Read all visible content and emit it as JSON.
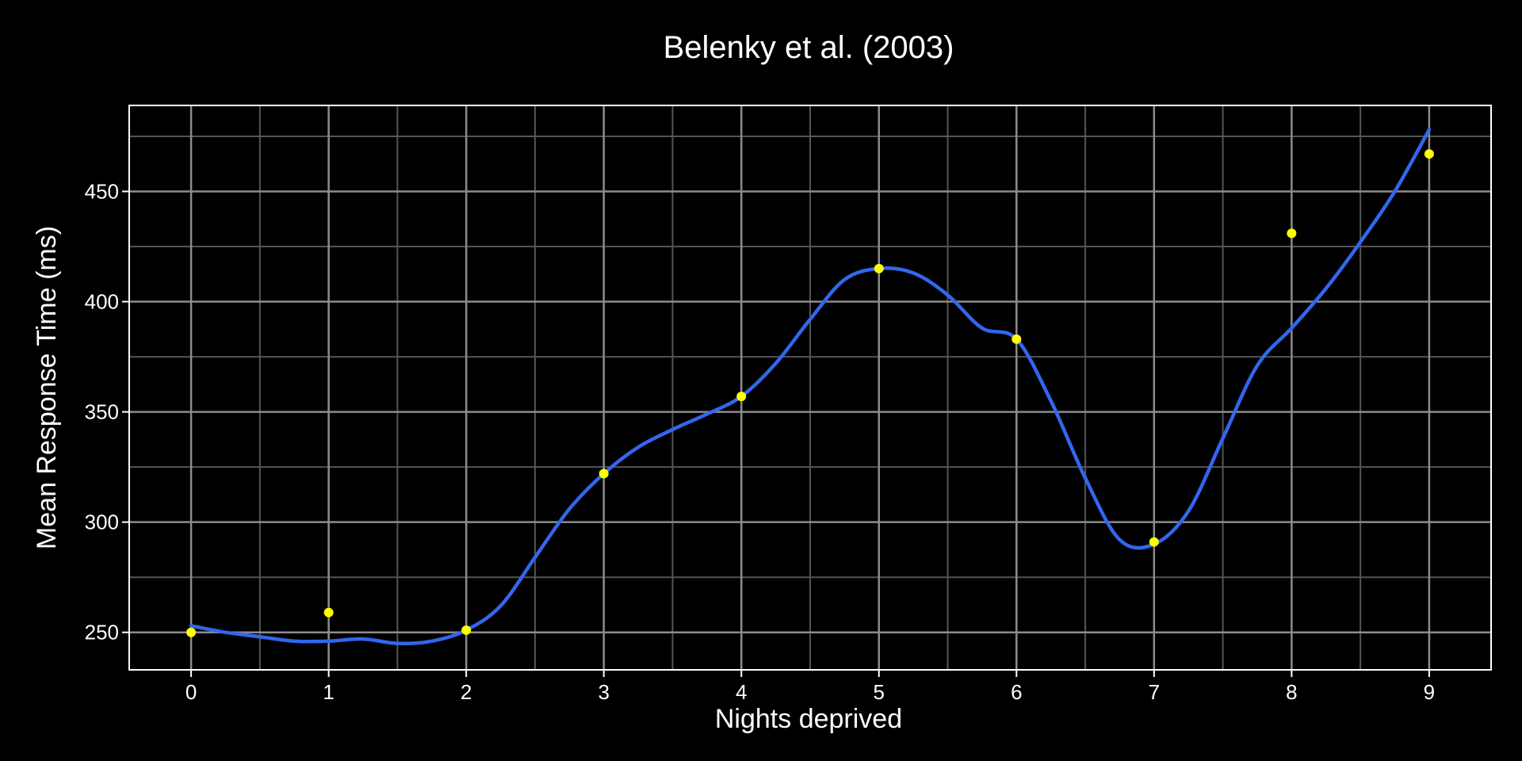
{
  "chart_data": {
    "type": "scatter",
    "title": "Belenky et al. (2003)",
    "xlabel": "Nights deprived",
    "ylabel": "Mean Response Time (ms)",
    "x": [
      0,
      1,
      2,
      3,
      4,
      5,
      6,
      7,
      8,
      9
    ],
    "y": [
      250,
      259,
      251,
      322,
      357,
      415,
      383,
      291,
      431,
      467
    ],
    "xlim": [
      -0.45,
      9.45
    ],
    "ylim": [
      233,
      489
    ],
    "xticks": [
      0,
      1,
      2,
      3,
      4,
      5,
      6,
      7,
      8,
      9
    ],
    "yticks": [
      250,
      300,
      350,
      400,
      450
    ],
    "smooth_curve": {
      "x": [
        0,
        0.25,
        0.5,
        0.75,
        1,
        1.25,
        1.5,
        1.75,
        2,
        2.25,
        2.5,
        2.75,
        3,
        3.25,
        3.5,
        3.75,
        4,
        4.25,
        4.5,
        4.75,
        5,
        5.25,
        5.5,
        5.75,
        6,
        6.25,
        6.5,
        6.75,
        7,
        7.25,
        7.5,
        7.75,
        8,
        8.25,
        8.5,
        8.75,
        9
      ],
      "y": [
        253,
        250,
        248,
        246,
        246,
        247,
        245,
        246,
        251,
        262,
        284,
        306,
        322,
        334,
        342,
        349,
        357,
        372,
        392,
        410,
        415,
        413,
        403,
        388,
        383,
        355,
        320,
        292,
        290,
        305,
        338,
        371,
        388,
        406,
        427,
        450,
        478
      ]
    },
    "grid": true,
    "colors": {
      "background": "#000000",
      "panel_border": "#ffffff",
      "grid_major": "#8c8c8c",
      "grid_minor": "#555555",
      "points": "#ffff00",
      "curve": "#3366ee",
      "text": "#ffffff"
    }
  }
}
